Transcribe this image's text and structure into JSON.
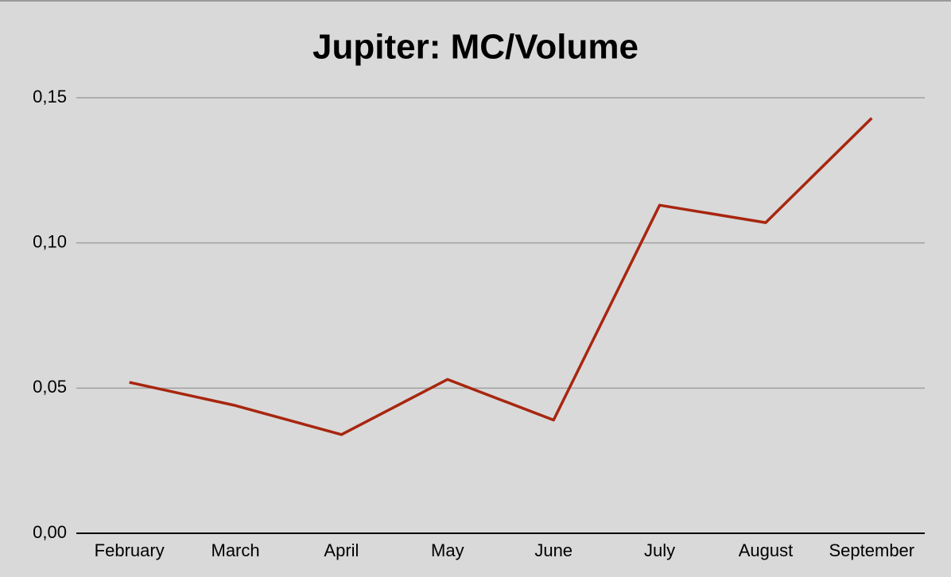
{
  "chart_data": {
    "type": "line",
    "title": "Jupiter: MC/Volume",
    "categories": [
      "February",
      "March",
      "April",
      "May",
      "June",
      "July",
      "August",
      "September"
    ],
    "values": [
      0.052,
      0.044,
      0.034,
      0.053,
      0.039,
      0.113,
      0.107,
      0.143
    ],
    "color": "#a8260f",
    "ylim": [
      0,
      0.15
    ],
    "yticks": [
      {
        "value": 0,
        "label": "0,00"
      },
      {
        "value": 0.05,
        "label": "0,05"
      },
      {
        "value": 0.1,
        "label": "0,10"
      },
      {
        "value": 0.15,
        "label": "0,15"
      }
    ],
    "grid": true
  }
}
